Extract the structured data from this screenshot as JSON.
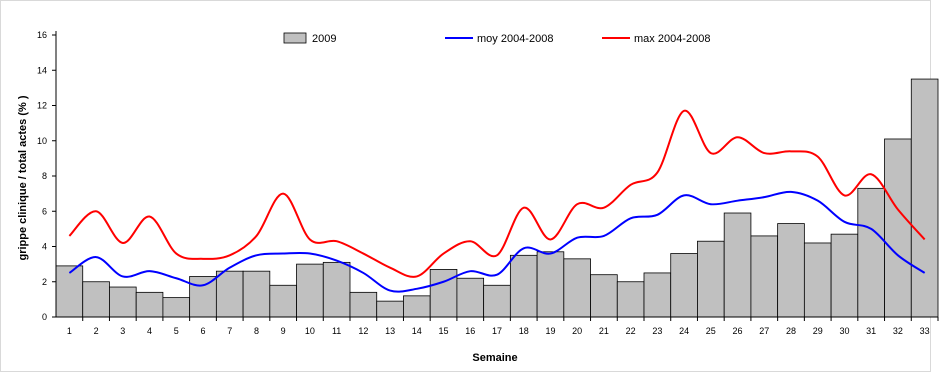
{
  "chart_data": {
    "type": "bar",
    "xlabel": "Semaine",
    "ylabel": "grippe clinique / total actes (% )",
    "ylim": [
      0,
      16
    ],
    "yticks": [
      0,
      2,
      4,
      6,
      8,
      10,
      12,
      14,
      16
    ],
    "grid": false,
    "legend_position": "top",
    "categories": [
      "1",
      "2",
      "3",
      "4",
      "5",
      "6",
      "7",
      "8",
      "9",
      "10",
      "11",
      "12",
      "13",
      "14",
      "15",
      "16",
      "17",
      "18",
      "19",
      "20",
      "21",
      "22",
      "23",
      "24",
      "25",
      "26",
      "27",
      "28",
      "29",
      "30",
      "31",
      "32",
      "33"
    ],
    "series": [
      {
        "name": "2009",
        "kind": "bar",
        "color": "#c0c0c0",
        "values": [
          2.9,
          2.0,
          1.7,
          1.4,
          1.1,
          2.3,
          2.6,
          2.6,
          1.8,
          3.0,
          3.1,
          1.4,
          0.9,
          1.2,
          2.7,
          2.2,
          1.8,
          3.5,
          3.7,
          3.3,
          2.4,
          2.0,
          2.5,
          3.6,
          4.3,
          5.9,
          4.6,
          5.3,
          4.2,
          4.7,
          7.3,
          10.1,
          13.5
        ]
      },
      {
        "name": "moy 2004-2008",
        "kind": "line",
        "color": "#0000ff",
        "values": [
          2.5,
          3.4,
          2.3,
          2.6,
          2.2,
          1.8,
          2.8,
          3.5,
          3.6,
          3.6,
          3.2,
          2.5,
          1.5,
          1.6,
          2.0,
          2.6,
          2.4,
          3.9,
          3.6,
          4.5,
          4.6,
          5.6,
          5.8,
          6.9,
          6.4,
          6.6,
          6.8,
          7.1,
          6.6,
          5.4,
          5.0,
          3.5,
          2.5
        ]
      },
      {
        "name": "max 2004-2008",
        "kind": "line",
        "color": "#ff0000",
        "values": [
          4.6,
          6.0,
          4.2,
          5.7,
          3.6,
          3.3,
          3.5,
          4.6,
          7.0,
          4.4,
          4.3,
          3.6,
          2.8,
          2.3,
          3.6,
          4.3,
          3.5,
          6.2,
          4.4,
          6.4,
          6.2,
          7.5,
          8.2,
          11.7,
          9.3,
          10.2,
          9.3,
          9.4,
          9.1,
          6.9,
          8.1,
          6.1,
          4.4
        ]
      }
    ]
  }
}
